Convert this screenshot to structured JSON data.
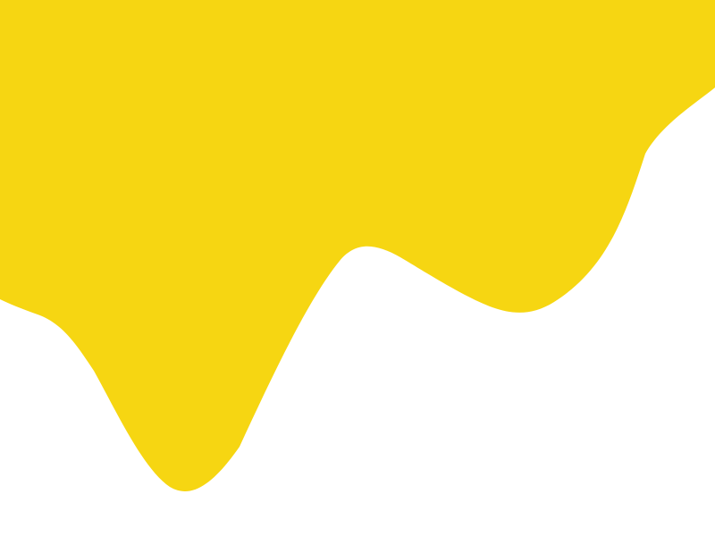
{
  "graphic": {
    "shape": "dripping-wave-blob",
    "fill_color": "#F6D612",
    "background_color": "#FFFFFF"
  }
}
